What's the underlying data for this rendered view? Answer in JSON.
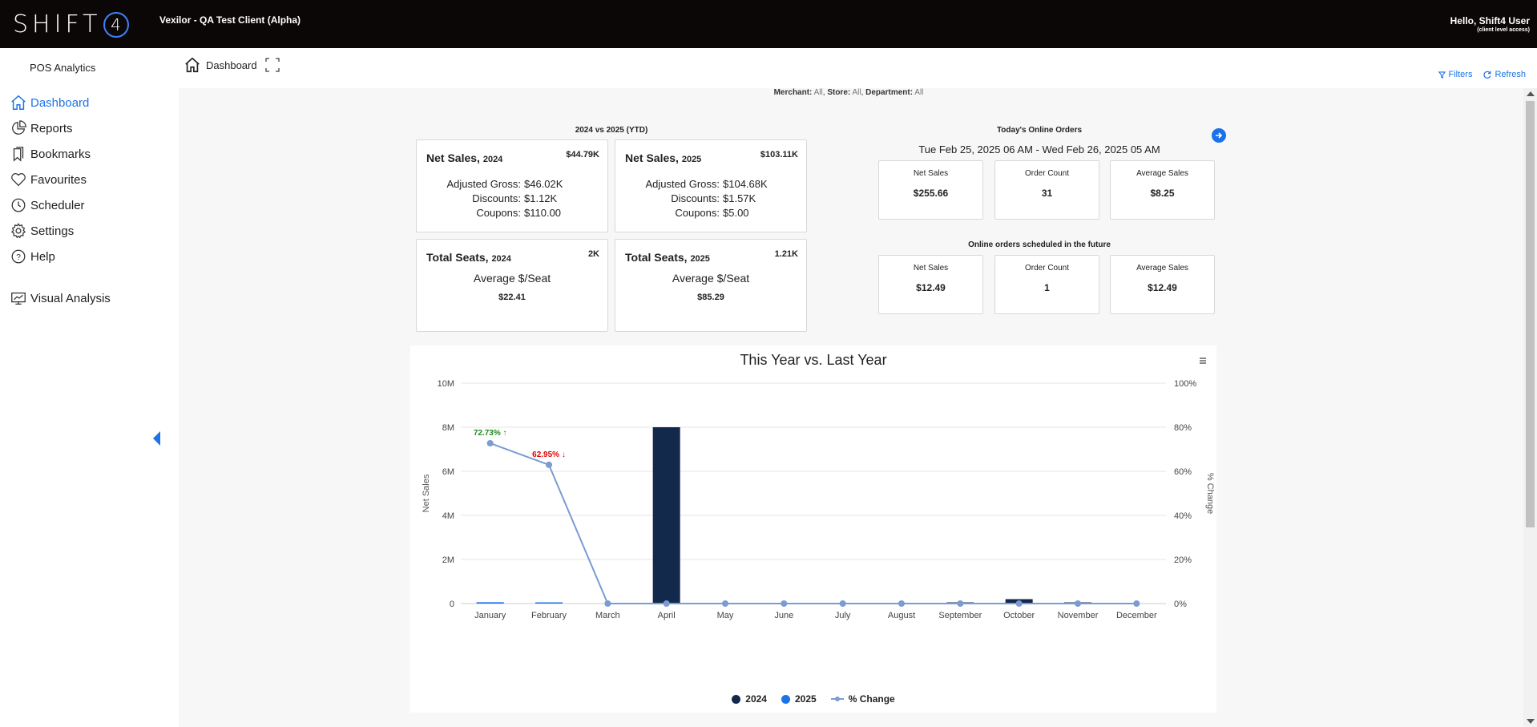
{
  "topbar": {
    "logo_text": "SHIFT",
    "logo_mark": "4",
    "client_title": "Vexilor - QA Test Client (Alpha)",
    "greeting": "Hello, Shift4 User",
    "access_note": "(client level access)"
  },
  "sidebar": {
    "title": "POS Analytics",
    "items": [
      {
        "label": "Dashboard",
        "icon": "home-icon",
        "active": true
      },
      {
        "label": "Reports",
        "icon": "pie-chart-icon"
      },
      {
        "label": "Bookmarks",
        "icon": "bookmark-icon"
      },
      {
        "label": "Favourites",
        "icon": "heart-icon"
      },
      {
        "label": "Scheduler",
        "icon": "clock-icon"
      },
      {
        "label": "Settings",
        "icon": "gear-icon"
      },
      {
        "label": "Help",
        "icon": "help-icon"
      },
      {
        "label": "Visual Analysis",
        "icon": "monitor-chart-icon"
      }
    ]
  },
  "header": {
    "breadcrumb": "Dashboard",
    "filters_label": "Filters",
    "refresh_label": "Refresh"
  },
  "filters": {
    "merchant_label": "Merchant:",
    "merchant_value": "All",
    "store_label": "Store:",
    "store_value": "All",
    "department_label": "Department:",
    "department_value": "All"
  },
  "ytd": {
    "caption": "2024 vs 2025 (YTD)",
    "net_2024": {
      "title": "Net Sales,",
      "year": "2024",
      "total": "$44.79K",
      "adjusted_label": "Adjusted Gross:",
      "adjusted": "$46.02K",
      "discounts_label": "Discounts:",
      "discounts": "$1.12K",
      "coupons_label": "Coupons:",
      "coupons": "$110.00"
    },
    "net_2025": {
      "title": "Net Sales,",
      "year": "2025",
      "total": "$103.11K",
      "adjusted_label": "Adjusted Gross:",
      "adjusted": "$104.68K",
      "discounts_label": "Discounts:",
      "discounts": "$1.57K",
      "coupons_label": "Coupons:",
      "coupons": "$5.00"
    },
    "seats_2024": {
      "title": "Total Seats,",
      "year": "2024",
      "total": "2K",
      "label": "Average $/Seat",
      "value": "$22.41"
    },
    "seats_2025": {
      "title": "Total Seats,",
      "year": "2025",
      "total": "1.21K",
      "label": "Average $/Seat",
      "value": "$85.29"
    }
  },
  "online": {
    "today_caption": "Today's Online Orders",
    "range": "Tue Feb 25, 2025 06 AM - Wed Feb 26, 2025 05 AM",
    "today": [
      {
        "label": "Net Sales",
        "value": "$255.66"
      },
      {
        "label": "Order Count",
        "value": "31"
      },
      {
        "label": "Average Sales",
        "value": "$8.25"
      }
    ],
    "future_caption": "Online orders scheduled in the future",
    "future": [
      {
        "label": "Net Sales",
        "value": "$12.49"
      },
      {
        "label": "Order Count",
        "value": "1"
      },
      {
        "label": "Average Sales",
        "value": "$12.49"
      }
    ]
  },
  "chart_data": {
    "type": "bar",
    "title": "This Year vs. Last Year",
    "ylabel": "Net Sales",
    "y2label": "% Change",
    "ylim": [
      0,
      10000000
    ],
    "y2lim": [
      0,
      100
    ],
    "y_ticks": [
      "0",
      "2M",
      "4M",
      "6M",
      "8M",
      "10M"
    ],
    "y2_ticks": [
      "0%",
      "20%",
      "40%",
      "60%",
      "80%",
      "100%"
    ],
    "categories": [
      "January",
      "February",
      "March",
      "April",
      "May",
      "June",
      "July",
      "August",
      "September",
      "October",
      "November",
      "December"
    ],
    "series": [
      {
        "name": "2024",
        "type": "bar",
        "color": "#13294b",
        "values": [
          30000,
          10000,
          0,
          8000000,
          0,
          0,
          0,
          0,
          50000,
          200000,
          40000,
          0
        ]
      },
      {
        "name": "2025",
        "type": "bar",
        "color": "#1a73e8",
        "values": [
          60000,
          15000,
          0,
          0,
          0,
          0,
          0,
          0,
          0,
          0,
          0,
          0
        ]
      },
      {
        "name": "% Change",
        "type": "line",
        "color": "#7b9bd1",
        "axis": "right",
        "values": [
          72.73,
          62.95,
          0,
          0,
          0,
          0,
          0,
          0,
          0,
          0,
          0,
          0
        ]
      }
    ],
    "annotations": [
      {
        "category": "January",
        "text": "72.73% ↑",
        "color": "#1a8a1a"
      },
      {
        "category": "February",
        "text": "62.95% ↓",
        "color": "#e00000"
      }
    ],
    "legend": "bottom",
    "grid": true
  }
}
